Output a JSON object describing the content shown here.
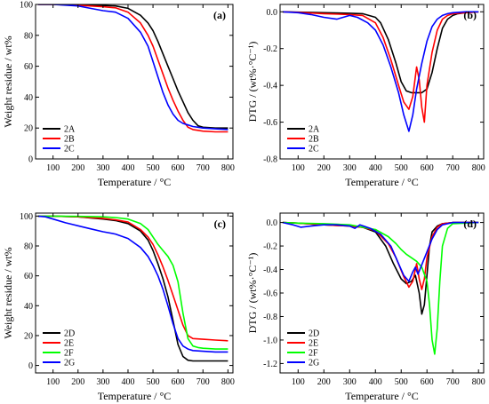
{
  "chart_data": [
    {
      "type": "line",
      "panel": "(a)",
      "xlabel": "Temperature / °C",
      "ylabel": "Weight residue / wt%",
      "xlim": [
        30,
        820
      ],
      "ylim": [
        0,
        100
      ],
      "xticks": [
        100,
        200,
        300,
        400,
        500,
        600,
        700,
        800
      ],
      "yticks": [
        0,
        20,
        40,
        60,
        80,
        100
      ],
      "legend_position": "bottom-left",
      "series": [
        {
          "name": "2A",
          "color": "#000000",
          "x": [
            40,
            100,
            200,
            300,
            350,
            400,
            450,
            480,
            500,
            520,
            540,
            560,
            580,
            600,
            620,
            640,
            660,
            680,
            700,
            750,
            800
          ],
          "y": [
            100,
            100,
            99.8,
            99.3,
            99,
            97.5,
            93,
            88,
            83,
            76,
            68,
            60,
            52,
            44,
            37,
            30,
            25,
            21.5,
            20.5,
            20,
            20
          ]
        },
        {
          "name": "2B",
          "color": "#ff0000",
          "x": [
            40,
            100,
            200,
            300,
            350,
            400,
            450,
            480,
            500,
            520,
            540,
            560,
            580,
            600,
            620,
            640,
            660,
            680,
            700,
            750,
            800
          ],
          "y": [
            100,
            100,
            99.5,
            98.5,
            97.8,
            95,
            88,
            80,
            73,
            64,
            55,
            46,
            38,
            31,
            25,
            20.5,
            19,
            18.5,
            18,
            17.5,
            17.5
          ]
        },
        {
          "name": "2C",
          "color": "#0000ff",
          "x": [
            40,
            100,
            200,
            250,
            300,
            350,
            400,
            450,
            480,
            500,
            520,
            540,
            560,
            580,
            600,
            620,
            640,
            660,
            680,
            700,
            750,
            800
          ],
          "y": [
            100,
            100,
            99,
            97.5,
            96,
            95,
            91,
            82,
            73,
            63,
            53,
            43,
            35,
            29,
            25,
            23,
            22,
            21,
            20.5,
            20,
            19.5,
            19
          ]
        }
      ]
    },
    {
      "type": "line",
      "panel": "(b)",
      "xlabel": "Temperature / °C",
      "ylabel": "DTG / (wt%·°C⁻¹)",
      "xlim": [
        30,
        820
      ],
      "ylim": [
        -0.8,
        0.04
      ],
      "xticks": [
        100,
        200,
        300,
        400,
        500,
        600,
        700,
        800
      ],
      "yticks": [
        0.0,
        -0.2,
        -0.4,
        -0.6,
        -0.8
      ],
      "ytick_labels": [
        "0.0",
        "-0.2",
        "-0.4",
        "-0.6",
        "-0.8"
      ],
      "legend_position": "bottom-left",
      "series": [
        {
          "name": "2A",
          "color": "#000000",
          "x": [
            40,
            100,
            200,
            300,
            350,
            400,
            420,
            450,
            480,
            500,
            520,
            540,
            560,
            580,
            600,
            620,
            640,
            660,
            680,
            700,
            720,
            750,
            800
          ],
          "y": [
            0,
            -0.002,
            -0.005,
            -0.008,
            -0.01,
            -0.03,
            -0.06,
            -0.15,
            -0.28,
            -0.38,
            -0.43,
            -0.44,
            -0.44,
            -0.44,
            -0.42,
            -0.33,
            -0.2,
            -0.09,
            -0.04,
            -0.02,
            -0.01,
            -0.005,
            0
          ]
        },
        {
          "name": "2B",
          "color": "#ff0000",
          "x": [
            40,
            100,
            200,
            300,
            350,
            400,
            430,
            460,
            490,
            510,
            530,
            545,
            560,
            570,
            580,
            590,
            600,
            620,
            640,
            660,
            680,
            700,
            750,
            800
          ],
          "y": [
            0,
            -0.003,
            -0.01,
            -0.015,
            -0.02,
            -0.06,
            -0.14,
            -0.26,
            -0.4,
            -0.49,
            -0.53,
            -0.46,
            -0.3,
            -0.37,
            -0.52,
            -0.6,
            -0.4,
            -0.22,
            -0.1,
            -0.04,
            -0.02,
            -0.01,
            -0.005,
            0
          ]
        },
        {
          "name": "2C",
          "color": "#0000ff",
          "x": [
            40,
            100,
            150,
            200,
            250,
            300,
            330,
            370,
            400,
            430,
            460,
            490,
            510,
            530,
            545,
            560,
            580,
            600,
            620,
            640,
            660,
            680,
            700,
            750,
            800
          ],
          "y": [
            0,
            -0.005,
            -0.015,
            -0.03,
            -0.04,
            -0.02,
            -0.03,
            -0.06,
            -0.1,
            -0.18,
            -0.3,
            -0.44,
            -0.56,
            -0.65,
            -0.56,
            -0.42,
            -0.28,
            -0.16,
            -0.08,
            -0.04,
            -0.02,
            -0.01,
            -0.005,
            0,
            0
          ]
        }
      ]
    },
    {
      "type": "line",
      "panel": "(c)",
      "xlabel": "Temperature / °C",
      "ylabel": "Weight residue / wt%",
      "xlim": [
        30,
        820
      ],
      "ylim": [
        -5,
        102
      ],
      "xticks": [
        100,
        200,
        300,
        400,
        500,
        600,
        700,
        800
      ],
      "yticks": [
        0,
        20,
        40,
        60,
        80,
        100
      ],
      "legend_position": "bottom-left",
      "series": [
        {
          "name": "2D",
          "color": "#000000",
          "x": [
            40,
            100,
            200,
            300,
            350,
            400,
            450,
            480,
            500,
            520,
            540,
            560,
            580,
            600,
            620,
            640,
            660,
            700,
            750,
            800
          ],
          "y": [
            100,
            100,
            99.5,
            98,
            97,
            95,
            90,
            84,
            77,
            68,
            58,
            46,
            30,
            14,
            6,
            3.5,
            3,
            3,
            3,
            3
          ]
        },
        {
          "name": "2E",
          "color": "#ff0000",
          "x": [
            40,
            100,
            200,
            300,
            350,
            400,
            450,
            480,
            500,
            520,
            540,
            560,
            580,
            600,
            620,
            640,
            660,
            700,
            750,
            800
          ],
          "y": [
            100,
            100,
            99.5,
            98.5,
            97.5,
            96,
            91,
            86,
            81,
            74,
            66,
            57,
            47,
            37,
            27,
            20,
            18,
            17.5,
            17,
            16.5
          ]
        },
        {
          "name": "2F",
          "color": "#00ff00",
          "x": [
            40,
            100,
            200,
            300,
            350,
            400,
            450,
            480,
            500,
            520,
            540,
            560,
            580,
            600,
            620,
            640,
            660,
            680,
            700,
            750,
            800
          ],
          "y": [
            100,
            100,
            99.8,
            99.5,
            99,
            98,
            95,
            91,
            86,
            81,
            77,
            73,
            67,
            56,
            35,
            18,
            13,
            12,
            11.5,
            11,
            11
          ]
        },
        {
          "name": "2G",
          "color": "#0000ff",
          "x": [
            40,
            70,
            100,
            150,
            200,
            250,
            300,
            350,
            400,
            450,
            480,
            500,
            520,
            540,
            560,
            580,
            600,
            620,
            640,
            660,
            700,
            750,
            800
          ],
          "y": [
            100,
            99.5,
            98,
            95.5,
            93.5,
            91.5,
            89.5,
            88,
            85,
            79,
            73,
            67,
            60,
            51,
            40,
            28,
            18,
            13,
            11,
            10,
            9.5,
            9,
            9
          ]
        }
      ]
    },
    {
      "type": "line",
      "panel": "(d)",
      "xlabel": "Temperature / °C",
      "ylabel": "DTG / (wt%·°C⁻¹)",
      "xlim": [
        30,
        820
      ],
      "ylim": [
        -1.28,
        0.08
      ],
      "xticks": [
        100,
        200,
        300,
        400,
        500,
        600,
        700,
        800
      ],
      "yticks": [
        0.0,
        -0.2,
        -0.4,
        -0.6,
        -0.8,
        -1.0,
        -1.2
      ],
      "ytick_labels": [
        "0.0",
        "-0.2",
        "-0.4",
        "-0.6",
        "-0.8",
        "-1.0",
        "-1.2"
      ],
      "legend_position": "bottom-left",
      "series": [
        {
          "name": "2D",
          "color": "#000000",
          "x": [
            40,
            100,
            200,
            300,
            350,
            400,
            440,
            470,
            500,
            520,
            540,
            555,
            570,
            580,
            590,
            600,
            610,
            620,
            640,
            660,
            700,
            800
          ],
          "y": [
            0,
            -0.005,
            -0.02,
            -0.03,
            -0.04,
            -0.08,
            -0.2,
            -0.35,
            -0.48,
            -0.52,
            -0.5,
            -0.45,
            -0.6,
            -0.78,
            -0.7,
            -0.45,
            -0.2,
            -0.08,
            -0.03,
            -0.01,
            0,
            0
          ]
        },
        {
          "name": "2E",
          "color": "#ff0000",
          "x": [
            40,
            100,
            200,
            300,
            350,
            400,
            450,
            480,
            510,
            530,
            545,
            560,
            570,
            580,
            590,
            600,
            620,
            640,
            660,
            700,
            800
          ],
          "y": [
            0,
            -0.005,
            -0.02,
            -0.03,
            -0.04,
            -0.07,
            -0.18,
            -0.3,
            -0.46,
            -0.55,
            -0.5,
            -0.35,
            -0.48,
            -0.57,
            -0.48,
            -0.3,
            -0.12,
            -0.04,
            -0.01,
            0,
            0
          ]
        },
        {
          "name": "2F",
          "color": "#00ff00",
          "x": [
            40,
            100,
            200,
            300,
            400,
            450,
            480,
            500,
            520,
            540,
            560,
            580,
            600,
            610,
            620,
            630,
            640,
            650,
            660,
            680,
            700,
            800
          ],
          "y": [
            0,
            -0.005,
            -0.01,
            -0.02,
            -0.06,
            -0.12,
            -0.18,
            -0.23,
            -0.27,
            -0.3,
            -0.33,
            -0.38,
            -0.5,
            -0.7,
            -1.0,
            -1.12,
            -0.9,
            -0.5,
            -0.2,
            -0.05,
            -0.01,
            0
          ]
        },
        {
          "name": "2G",
          "color": "#0000ff",
          "x": [
            40,
            80,
            110,
            150,
            200,
            250,
            300,
            320,
            340,
            380,
            420,
            460,
            490,
            510,
            530,
            545,
            555,
            565,
            580,
            600,
            620,
            640,
            660,
            700,
            800
          ],
          "y": [
            0,
            -0.02,
            -0.04,
            -0.03,
            -0.02,
            -0.02,
            -0.03,
            -0.05,
            -0.02,
            -0.05,
            -0.1,
            -0.2,
            -0.35,
            -0.45,
            -0.5,
            -0.42,
            -0.38,
            -0.44,
            -0.36,
            -0.25,
            -0.14,
            -0.06,
            -0.02,
            0,
            0
          ]
        }
      ]
    }
  ]
}
